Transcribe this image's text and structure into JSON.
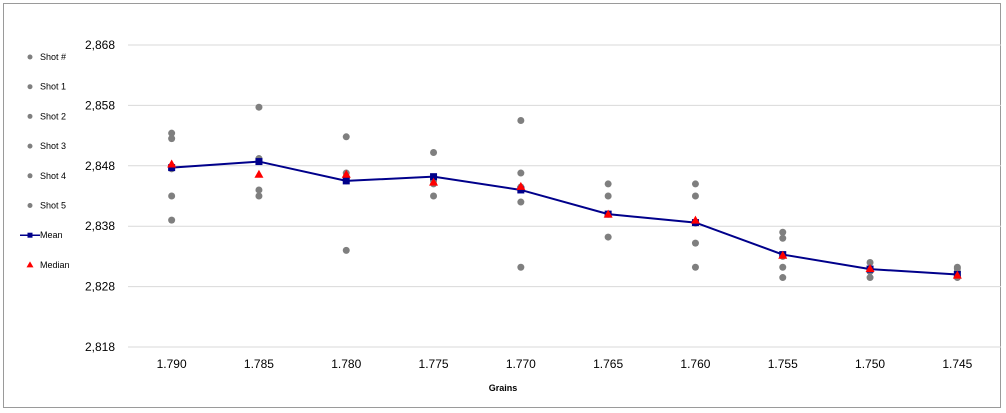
{
  "chart_data": {
    "type": "scatter",
    "title": "",
    "xlabel": "Grains",
    "ylabel": "",
    "categories": [
      "1.790",
      "1.785",
      "1.780",
      "1.775",
      "1.770",
      "1.765",
      "1.760",
      "1.755",
      "1.750",
      "1.745"
    ],
    "y_ticks": [
      "2,868",
      "2,858",
      "2,848",
      "2,838",
      "2,828",
      "2,818"
    ],
    "ylim": [
      2818,
      2868
    ],
    "grid": true,
    "legend_position": "left",
    "series": [
      {
        "name": "Shot #",
        "marker": "circle",
        "color": "#7f7f7f",
        "values": []
      },
      {
        "name": "Shot 1",
        "marker": "circle",
        "color": "#7f7f7f",
        "values": [
          2853.4,
          2857.7,
          2852.8,
          2850.2,
          2855.5,
          2845.0,
          2845.0,
          2837.0,
          2832.0,
          2831.2
        ]
      },
      {
        "name": "Shot 2",
        "marker": "circle",
        "color": "#7f7f7f",
        "values": [
          2852.5,
          2849.2,
          2846.8,
          2845.5,
          2846.8,
          2843.0,
          2843.0,
          2836.0,
          2830.5,
          2830.5
        ]
      },
      {
        "name": "Shot 3",
        "marker": "circle",
        "color": "#7f7f7f",
        "values": [
          2843.0,
          2844.0,
          2845.5,
          2845.0,
          2842.0,
          2840.0,
          2838.5,
          2833.0,
          2831.0,
          2829.8
        ]
      },
      {
        "name": "Shot 4",
        "marker": "circle",
        "color": "#7f7f7f",
        "values": [
          2847.5,
          2843.0,
          2846.0,
          2843.0,
          2844.5,
          2836.2,
          2835.2,
          2831.2,
          2829.5,
          2829.5
        ]
      },
      {
        "name": "Shot 5",
        "marker": "circle",
        "color": "#7f7f7f",
        "values": [
          2839.0,
          2849.0,
          2834.0,
          2845.7,
          2831.2,
          2840.0,
          2831.2,
          2829.5,
          2831.0,
          2831.0
        ]
      },
      {
        "name": "Mean",
        "marker": "square",
        "line": true,
        "color": "#00008b",
        "values": [
          2847.7,
          2848.7,
          2845.5,
          2846.2,
          2844.0,
          2840.0,
          2838.6,
          2833.3,
          2830.9,
          2830.0
        ]
      },
      {
        "name": "Median",
        "marker": "triangle",
        "color": "#ff0000",
        "values": [
          2848.3,
          2846.6,
          2846.6,
          2845.3,
          2844.6,
          2840.0,
          2839.0,
          2833.2,
          2831.0,
          2829.9
        ]
      }
    ]
  }
}
